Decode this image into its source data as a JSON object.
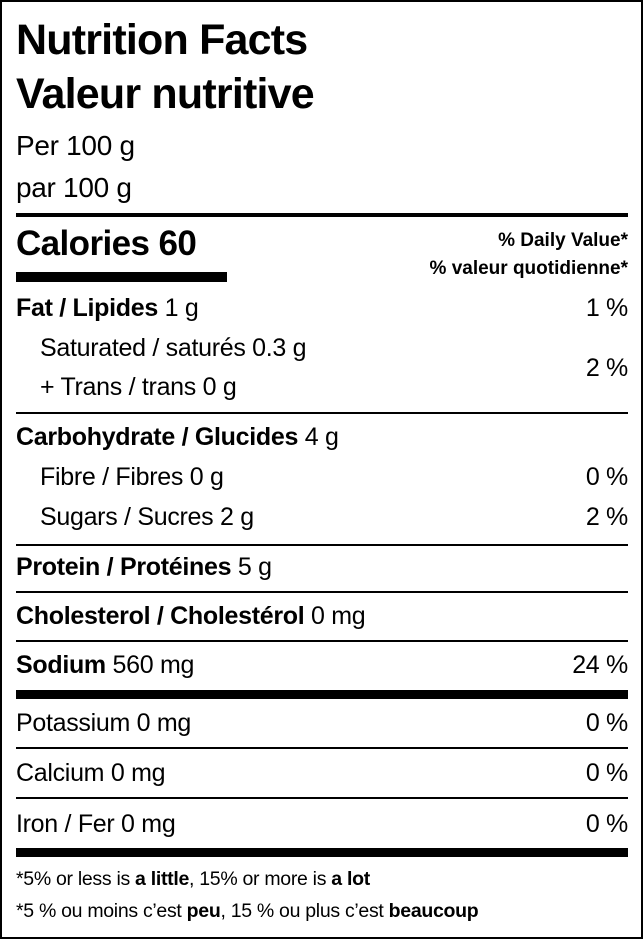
{
  "title_en": "Nutrition Facts",
  "title_fr": "Valeur nutritive",
  "serving_en": "Per 100 g",
  "serving_fr": "par 100 g",
  "calories": {
    "label": "Calories",
    "value": "60"
  },
  "daily_value_en": "% Daily Value*",
  "daily_value_fr": "% valeur quotidienne*",
  "rows": {
    "fat": {
      "bold": "Fat / Lipides",
      "amount": " 1 g",
      "dv": "1 %"
    },
    "saturated": {
      "bold": "",
      "amount": "Saturated / saturés 0.3 g",
      "dv": ""
    },
    "trans": {
      "bold": "",
      "amount": "+ Trans / trans 0 g",
      "dv": ""
    },
    "sat_trans_dv": "2 %",
    "carb": {
      "bold": "Carbohydrate / Glucides",
      "amount": " 4 g",
      "dv": ""
    },
    "fibre": {
      "bold": "",
      "amount": "Fibre / Fibres 0 g",
      "dv": "0 %"
    },
    "sugars": {
      "bold": "",
      "amount": "Sugars / Sucres 2 g",
      "dv": "2 %"
    },
    "protein": {
      "bold": "Protein / Protéines",
      "amount": " 5 g",
      "dv": ""
    },
    "cholesterol": {
      "bold": "Cholesterol / Cholestérol",
      "amount": " 0 mg",
      "dv": ""
    },
    "sodium": {
      "bold": "Sodium",
      "amount": " 560 mg",
      "dv": "24 %"
    },
    "potassium": {
      "bold": "",
      "amount": "Potassium 0 mg",
      "dv": "0 %"
    },
    "calcium": {
      "bold": "",
      "amount": "Calcium 0 mg",
      "dv": "0 %"
    },
    "iron": {
      "bold": "",
      "amount": "Iron / Fer 0 mg",
      "dv": "0 %"
    }
  },
  "footnote_en": {
    "a": "*5% or less is ",
    "b": "a little",
    "c": ", 15% or more is ",
    "d": "a lot"
  },
  "footnote_fr": {
    "a": "*5 % ou moins c’est ",
    "b": "peu",
    "c": ", 15 % ou plus c’est ",
    "d": "beaucoup"
  }
}
